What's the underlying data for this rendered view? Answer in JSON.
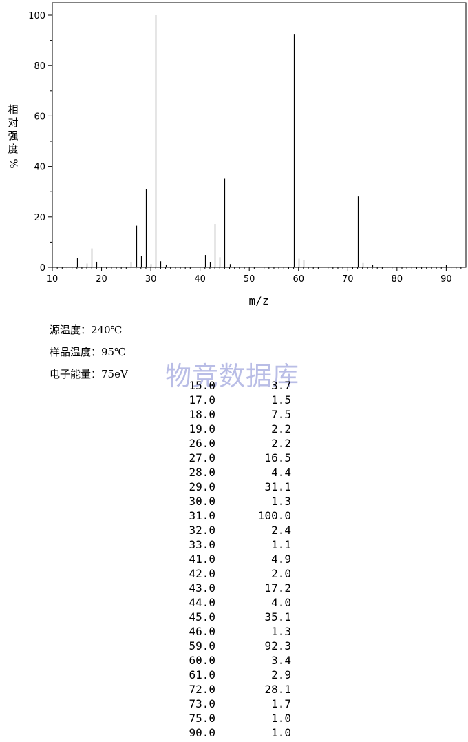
{
  "chart_data": {
    "type": "bar",
    "xlabel": "m/z",
    "ylabel_chars": [
      "相",
      "对",
      "强",
      "度"
    ],
    "ylabel_unit": "%",
    "xlim": [
      10,
      94
    ],
    "ylim": [
      0,
      100
    ],
    "xticks": [
      10,
      20,
      30,
      40,
      50,
      60,
      70,
      80,
      90
    ],
    "yticks": [
      0,
      20,
      40,
      60,
      80,
      100
    ],
    "grid": false,
    "peaks": [
      {
        "mz": 15.0,
        "intensity": 3.7
      },
      {
        "mz": 17.0,
        "intensity": 1.5
      },
      {
        "mz": 18.0,
        "intensity": 7.5
      },
      {
        "mz": 19.0,
        "intensity": 2.2
      },
      {
        "mz": 26.0,
        "intensity": 2.2
      },
      {
        "mz": 27.0,
        "intensity": 16.5
      },
      {
        "mz": 28.0,
        "intensity": 4.4
      },
      {
        "mz": 29.0,
        "intensity": 31.1
      },
      {
        "mz": 30.0,
        "intensity": 1.3
      },
      {
        "mz": 31.0,
        "intensity": 100.0
      },
      {
        "mz": 32.0,
        "intensity": 2.4
      },
      {
        "mz": 33.0,
        "intensity": 1.1
      },
      {
        "mz": 41.0,
        "intensity": 4.9
      },
      {
        "mz": 42.0,
        "intensity": 2.0
      },
      {
        "mz": 43.0,
        "intensity": 17.2
      },
      {
        "mz": 44.0,
        "intensity": 4.0
      },
      {
        "mz": 45.0,
        "intensity": 35.1
      },
      {
        "mz": 46.0,
        "intensity": 1.3
      },
      {
        "mz": 59.0,
        "intensity": 92.3
      },
      {
        "mz": 60.0,
        "intensity": 3.4
      },
      {
        "mz": 61.0,
        "intensity": 2.9
      },
      {
        "mz": 72.0,
        "intensity": 28.1
      },
      {
        "mz": 73.0,
        "intensity": 1.7
      },
      {
        "mz": 75.0,
        "intensity": 1.0
      },
      {
        "mz": 90.0,
        "intensity": 1.0
      }
    ]
  },
  "conditions": {
    "source_temp": "源温度：240℃",
    "sample_temp": "样品温度：95℃",
    "electron_energy": "电子能量：75eV"
  },
  "watermark": "物竞数据库",
  "peak_table": [
    {
      "mz": "15.0",
      "intensity": "3.7"
    },
    {
      "mz": "17.0",
      "intensity": "1.5"
    },
    {
      "mz": "18.0",
      "intensity": "7.5"
    },
    {
      "mz": "19.0",
      "intensity": "2.2"
    },
    {
      "mz": "26.0",
      "intensity": "2.2"
    },
    {
      "mz": "27.0",
      "intensity": "16.5"
    },
    {
      "mz": "28.0",
      "intensity": "4.4"
    },
    {
      "mz": "29.0",
      "intensity": "31.1"
    },
    {
      "mz": "30.0",
      "intensity": "1.3"
    },
    {
      "mz": "31.0",
      "intensity": "100.0"
    },
    {
      "mz": "32.0",
      "intensity": "2.4"
    },
    {
      "mz": "33.0",
      "intensity": "1.1"
    },
    {
      "mz": "41.0",
      "intensity": "4.9"
    },
    {
      "mz": "42.0",
      "intensity": "2.0"
    },
    {
      "mz": "43.0",
      "intensity": "17.2"
    },
    {
      "mz": "44.0",
      "intensity": "4.0"
    },
    {
      "mz": "45.0",
      "intensity": "35.1"
    },
    {
      "mz": "46.0",
      "intensity": "1.3"
    },
    {
      "mz": "59.0",
      "intensity": "92.3"
    },
    {
      "mz": "60.0",
      "intensity": "3.4"
    },
    {
      "mz": "61.0",
      "intensity": "2.9"
    },
    {
      "mz": "72.0",
      "intensity": "28.1"
    },
    {
      "mz": "73.0",
      "intensity": "1.7"
    },
    {
      "mz": "75.0",
      "intensity": "1.0"
    },
    {
      "mz": "90.0",
      "intensity": "1.0"
    }
  ]
}
